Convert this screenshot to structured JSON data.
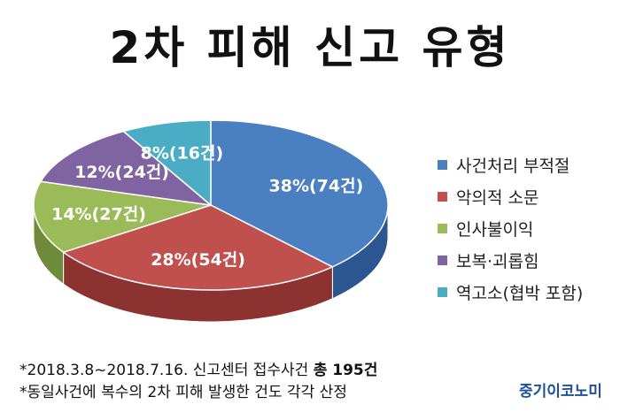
{
  "title": "2차 피해 신고 유형",
  "chart_data": {
    "type": "pie",
    "slices": [
      {
        "name": "사건처리 부적절",
        "value": 74,
        "percent": 38,
        "label": "38%(74건)",
        "color": "#4a7fc1",
        "side_color": "#2b5690"
      },
      {
        "name": "악의적 소문",
        "value": 54,
        "percent": 28,
        "label": "28%(54건)",
        "color": "#c0504d",
        "side_color": "#8c3331"
      },
      {
        "name": "인사불이익",
        "value": 27,
        "percent": 14,
        "label": "14%(27건)",
        "color": "#9bbb59",
        "side_color": "#6f8a3a"
      },
      {
        "name": "보복·괴롭힘",
        "value": 24,
        "percent": 12,
        "label": "12%(24건)",
        "color": "#8064a2",
        "side_color": "#5b4677"
      },
      {
        "name": "역고소(협박 포함)",
        "value": 16,
        "percent": 8,
        "label": "8%(16건)",
        "color": "#4bacc6",
        "side_color": "#2f7d93"
      }
    ],
    "legend_position": "right"
  },
  "notes": {
    "line1_prefix": "*2018.3.8~2018.7.16. 신고센터 접수사건 ",
    "line1_bold": "총 195건",
    "line2": "*동일사건에 복수의 2차 피해 발생한 건도 각각 산정"
  },
  "brand": "중기이코노미"
}
